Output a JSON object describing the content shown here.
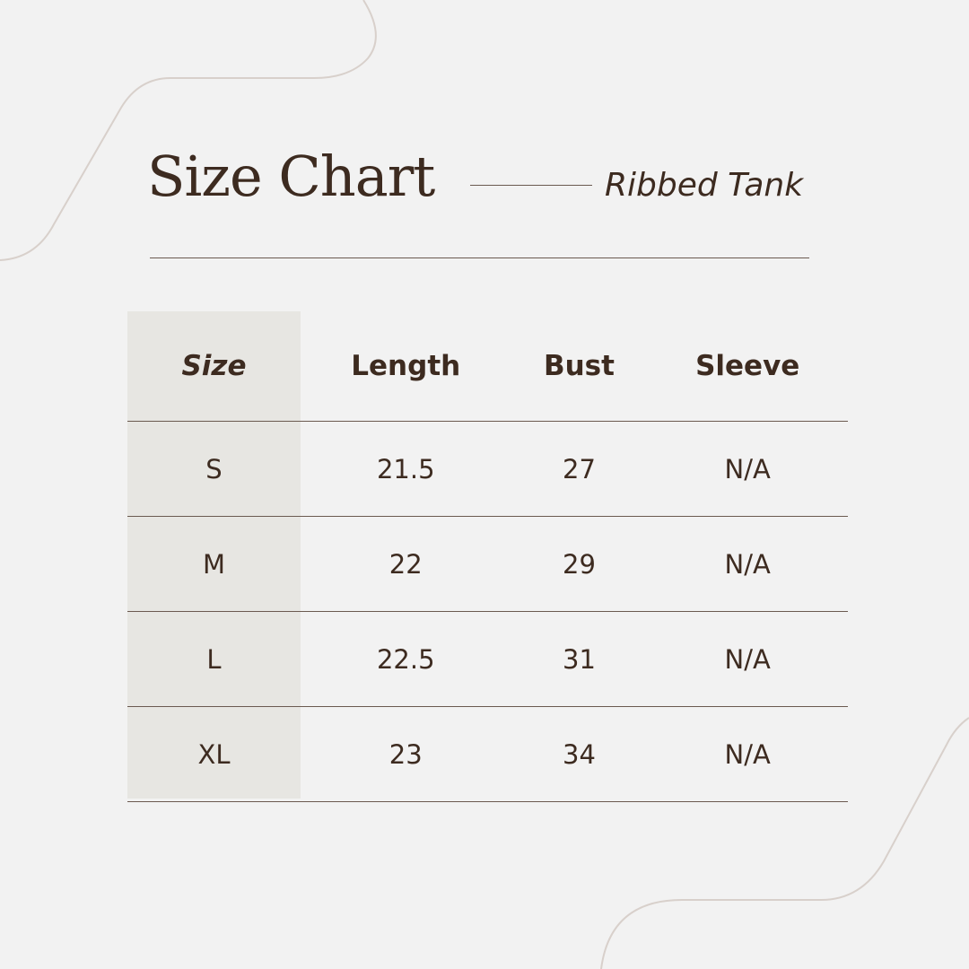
{
  "header": {
    "title": "Size Chart",
    "subtitle": "Ribbed Tank"
  },
  "table": {
    "columns": [
      "Size",
      "Length",
      "Bust",
      "Sleeve"
    ],
    "rows": [
      [
        "S",
        "21.5",
        "27",
        "N/A"
      ],
      [
        "M",
        "22",
        "29",
        "N/A"
      ],
      [
        "L",
        "22.5",
        "31",
        "N/A"
      ],
      [
        "XL",
        "23",
        "34",
        "N/A"
      ]
    ]
  },
  "colors": {
    "background": "#f2f2f2",
    "text": "#3d2b20",
    "shade": "#e7e6e2",
    "decor_line": "#d8d0cb"
  }
}
